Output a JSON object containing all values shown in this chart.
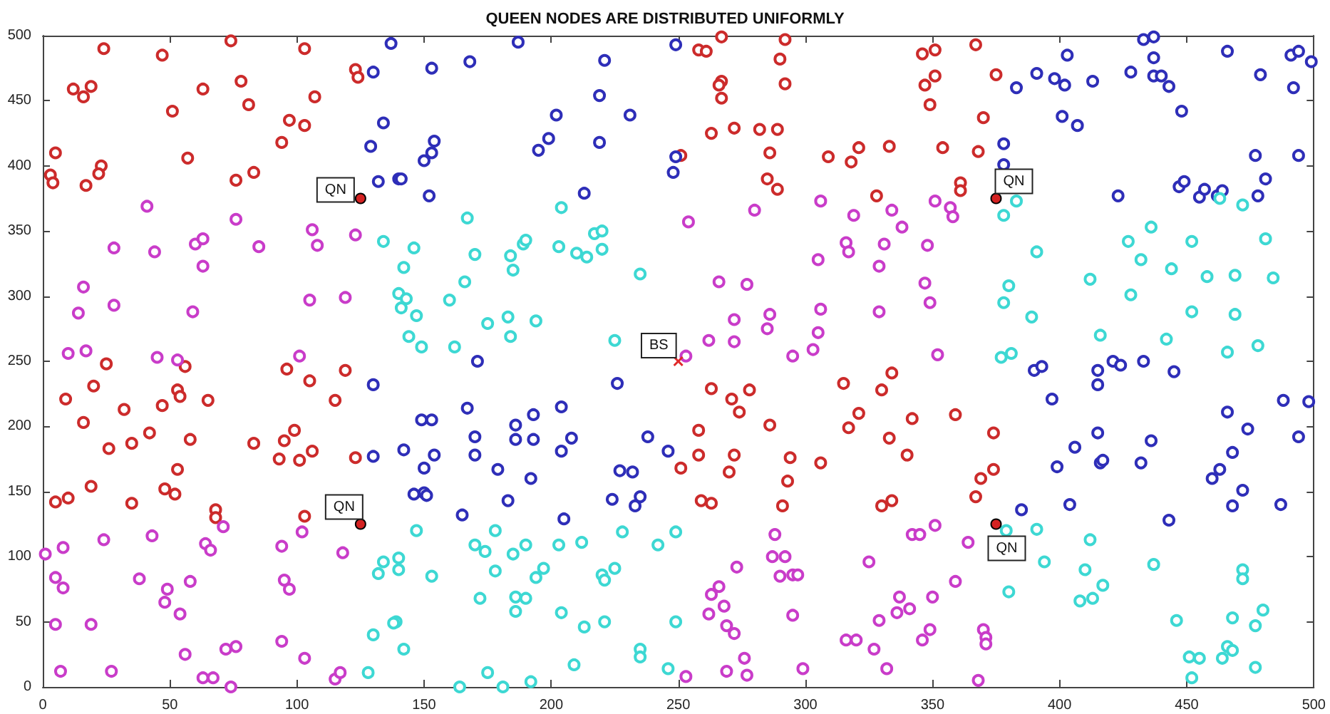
{
  "chart_data": {
    "type": "scatter",
    "title": "QUEEN NODES ARE DISTRIBUTED UNIFORMLY",
    "marker": "circle",
    "grid": false,
    "xlim": [
      0,
      500
    ],
    "ylim": [
      0,
      500
    ],
    "xticks": [
      0,
      50,
      100,
      150,
      200,
      250,
      300,
      350,
      400,
      450,
      500
    ],
    "yticks": [
      0,
      50,
      100,
      150,
      200,
      250,
      300,
      350,
      400,
      450,
      500
    ],
    "series": [
      {
        "color": "#cc2b2b",
        "x": [
          24,
          47,
          74,
          103,
          12,
          16,
          19,
          63,
          78,
          81,
          51,
          107,
          123,
          124,
          97,
          103,
          94,
          5,
          3,
          4,
          23,
          22,
          17,
          57,
          76,
          83,
          267,
          292,
          258,
          261,
          290,
          267,
          266,
          267,
          292,
          263,
          272,
          282,
          289,
          251,
          286,
          285,
          289,
          309,
          321,
          318,
          328,
          333,
          346,
          351,
          367,
          347,
          351,
          375,
          349,
          370,
          354,
          368,
          361,
          361,
          25,
          56,
          96,
          119,
          105,
          53,
          54,
          20,
          9,
          65,
          115,
          47,
          32,
          16,
          42,
          99,
          58,
          95,
          35,
          83,
          26,
          93,
          101,
          106,
          123,
          53,
          19,
          5,
          10,
          35,
          48,
          52,
          68,
          68,
          103,
          263,
          271,
          278,
          274,
          286,
          258,
          258,
          272,
          251,
          270,
          294,
          293,
          306,
          259,
          263,
          291,
          315,
          330,
          321,
          317,
          330,
          334,
          333,
          342,
          359,
          374,
          340,
          374,
          369,
          367,
          334
        ],
        "values": [
          490,
          485,
          496,
          490,
          459,
          453,
          461,
          459,
          465,
          447,
          442,
          453,
          474,
          468,
          435,
          431,
          418,
          410,
          393,
          387,
          400,
          394,
          385,
          406,
          389,
          395,
          499,
          497,
          489,
          488,
          482,
          465,
          462,
          452,
          463,
          425,
          429,
          428,
          428,
          408,
          410,
          390,
          382,
          407,
          414,
          403,
          377,
          415,
          486,
          489,
          493,
          462,
          469,
          470,
          447,
          437,
          414,
          411,
          387,
          381,
          248,
          246,
          244,
          243,
          235,
          228,
          223,
          231,
          221,
          220,
          220,
          216,
          213,
          203,
          195,
          197,
          190,
          189,
          187,
          187,
          183,
          175,
          174,
          181,
          176,
          167,
          154,
          142,
          145,
          141,
          152,
          148,
          136,
          130,
          131,
          229,
          221,
          228,
          211,
          201,
          197,
          178,
          178,
          168,
          165,
          176,
          158,
          172,
          143,
          141,
          139,
          233,
          228,
          210,
          199,
          139,
          241,
          191,
          206,
          209,
          195,
          178,
          167,
          160,
          146,
          143
        ]
      },
      {
        "color": "#2e2eb8",
        "x": [
          137,
          130,
          153,
          134,
          129,
          154,
          153,
          150,
          132,
          140,
          141,
          152,
          187,
          168,
          221,
          249,
          219,
          202,
          231,
          199,
          195,
          219,
          249,
          248,
          213,
          171,
          403,
          383,
          391,
          398,
          402,
          413,
          433,
          437,
          437,
          428,
          437,
          440,
          443,
          466,
          479,
          491,
          494,
          499,
          492,
          401,
          407,
          448,
          378,
          378,
          423,
          447,
          449,
          455,
          457,
          462,
          464,
          478,
          481,
          477,
          494,
          130,
          149,
          153,
          142,
          154,
          130,
          150,
          146,
          150,
          151,
          226,
          167,
          186,
          193,
          204,
          170,
          186,
          193,
          208,
          238,
          170,
          204,
          246,
          179,
          227,
          232,
          192,
          183,
          224,
          235,
          233,
          165,
          205,
          390,
          393,
          415,
          415,
          421,
          424,
          433,
          445,
          397,
          415,
          406,
          436,
          399,
          416,
          417,
          432,
          404,
          385,
          443,
          466,
          474,
          468,
          463,
          460,
          472,
          468,
          488,
          498,
          494,
          487
        ],
        "values": [
          494,
          472,
          475,
          433,
          415,
          419,
          410,
          404,
          388,
          390,
          390,
          377,
          495,
          480,
          481,
          493,
          454,
          439,
          439,
          421,
          412,
          418,
          407,
          395,
          379,
          250,
          485,
          460,
          471,
          467,
          462,
          465,
          497,
          499,
          483,
          472,
          469,
          469,
          461,
          488,
          470,
          485,
          488,
          480,
          460,
          438,
          431,
          442,
          417,
          401,
          377,
          384,
          388,
          376,
          382,
          377,
          381,
          377,
          390,
          408,
          408,
          232,
          205,
          205,
          182,
          178,
          177,
          168,
          148,
          149,
          147,
          233,
          214,
          201,
          209,
          215,
          192,
          190,
          190,
          191,
          192,
          178,
          181,
          181,
          167,
          166,
          165,
          160,
          143,
          144,
          146,
          139,
          132,
          129,
          243,
          246,
          243,
          232,
          250,
          247,
          250,
          242,
          221,
          195,
          184,
          189,
          169,
          172,
          174,
          172,
          140,
          136,
          128,
          211,
          198,
          180,
          167,
          160,
          151,
          139,
          220,
          219,
          192,
          140
        ]
      },
      {
        "color": "#c93cc9",
        "x": [
          41,
          76,
          28,
          44,
          60,
          63,
          63,
          85,
          106,
          108,
          123,
          16,
          14,
          28,
          59,
          105,
          119,
          10,
          17,
          45,
          53,
          101,
          280,
          254,
          306,
          319,
          316,
          317,
          331,
          305,
          329,
          266,
          277,
          272,
          286,
          285,
          306,
          305,
          329,
          262,
          272,
          303,
          295,
          253,
          334,
          338,
          351,
          357,
          358,
          348,
          347,
          349,
          352,
          71,
          102,
          43,
          24,
          64,
          66,
          8,
          1,
          94,
          118,
          5,
          8,
          38,
          49,
          58,
          48,
          54,
          95,
          97,
          5,
          19,
          94,
          76,
          72,
          56,
          103,
          7,
          27,
          63,
          67,
          74,
          115,
          117,
          288,
          287,
          292,
          273,
          290,
          295,
          297,
          266,
          263,
          268,
          262,
          295,
          269,
          272,
          276,
          269,
          277,
          253,
          299,
          325,
          316,
          320,
          329,
          327,
          351,
          342,
          345,
          364,
          359,
          337,
          336,
          341,
          350,
          349,
          346,
          370,
          371,
          371,
          368,
          332
        ],
        "values": [
          369,
          359,
          337,
          334,
          340,
          344,
          323,
          338,
          351,
          339,
          347,
          307,
          287,
          293,
          288,
          297,
          299,
          256,
          258,
          253,
          251,
          254,
          366,
          357,
          373,
          362,
          341,
          334,
          340,
          328,
          323,
          311,
          309,
          282,
          286,
          275,
          290,
          272,
          288,
          266,
          265,
          259,
          254,
          254,
          366,
          353,
          373,
          368,
          361,
          339,
          310,
          295,
          255,
          123,
          119,
          116,
          113,
          110,
          105,
          107,
          102,
          108,
          103,
          84,
          76,
          83,
          75,
          81,
          65,
          56,
          82,
          75,
          48,
          48,
          35,
          31,
          29,
          25,
          22,
          12,
          12,
          7,
          7,
          0,
          6,
          11,
          117,
          100,
          100,
          92,
          85,
          86,
          86,
          77,
          71,
          62,
          56,
          55,
          47,
          41,
          22,
          12,
          9,
          8,
          14,
          96,
          36,
          36,
          51,
          29,
          124,
          117,
          117,
          111,
          81,
          69,
          57,
          60,
          69,
          44,
          36,
          44,
          38,
          33,
          5,
          14
        ]
      },
      {
        "color": "#3dd8d3",
        "x": [
          134,
          146,
          142,
          140,
          143,
          141,
          147,
          144,
          149,
          204,
          167,
          170,
          184,
          185,
          189,
          190,
          203,
          210,
          214,
          217,
          220,
          220,
          235,
          166,
          160,
          183,
          175,
          194,
          184,
          162,
          225,
          383,
          378,
          463,
          472,
          436,
          427,
          452,
          481,
          391,
          432,
          444,
          412,
          458,
          469,
          484,
          380,
          378,
          428,
          389,
          452,
          469,
          416,
          442,
          478,
          466,
          377,
          381,
          147,
          134,
          140,
          132,
          140,
          153,
          130,
          139,
          138,
          142,
          128,
          178,
          170,
          174,
          185,
          190,
          203,
          212,
          228,
          242,
          249,
          178,
          197,
          194,
          220,
          225,
          221,
          172,
          186,
          190,
          186,
          204,
          213,
          221,
          249,
          235,
          235,
          246,
          209,
          192,
          175,
          181,
          164,
          379,
          391,
          412,
          394,
          437,
          410,
          417,
          380,
          408,
          413,
          472,
          472,
          480,
          468,
          477,
          446,
          466,
          468,
          464,
          451,
          455,
          477,
          452
        ],
        "values": [
          342,
          337,
          322,
          302,
          298,
          291,
          285,
          269,
          261,
          368,
          360,
          332,
          331,
          320,
          340,
          343,
          338,
          333,
          330,
          348,
          350,
          336,
          317,
          311,
          297,
          284,
          279,
          281,
          269,
          261,
          266,
          373,
          362,
          375,
          370,
          353,
          342,
          342,
          344,
          334,
          328,
          321,
          313,
          315,
          316,
          314,
          308,
          295,
          301,
          284,
          288,
          286,
          270,
          267,
          262,
          257,
          253,
          256,
          120,
          96,
          99,
          87,
          90,
          85,
          40,
          50,
          49,
          29,
          11,
          120,
          109,
          104,
          102,
          109,
          109,
          111,
          119,
          109,
          119,
          89,
          91,
          84,
          86,
          91,
          82,
          68,
          69,
          68,
          58,
          57,
          46,
          50,
          50,
          29,
          23,
          14,
          17,
          4,
          11,
          0,
          0,
          120,
          121,
          113,
          96,
          94,
          90,
          78,
          73,
          66,
          68,
          90,
          83,
          59,
          53,
          47,
          51,
          31,
          28,
          22,
          23,
          22,
          15,
          7
        ]
      },
      {
        "color": "#d42222",
        "marker": "circle",
        "x": [
          125,
          375,
          125,
          375
        ],
        "values": [
          375,
          375,
          125,
          125
        ]
      },
      {
        "color": "#e02a2a",
        "marker": "cross",
        "x": [
          250
        ],
        "values": [
          250
        ]
      }
    ],
    "annotations": [
      {
        "text": "QN",
        "x": 125,
        "y": 375
      },
      {
        "text": "QN",
        "x": 375,
        "y": 375
      },
      {
        "text": "BS",
        "x": 250,
        "y": 250
      },
      {
        "text": "QN",
        "x": 125,
        "y": 125
      },
      {
        "text": "QN",
        "x": 375,
        "y": 125
      }
    ]
  }
}
